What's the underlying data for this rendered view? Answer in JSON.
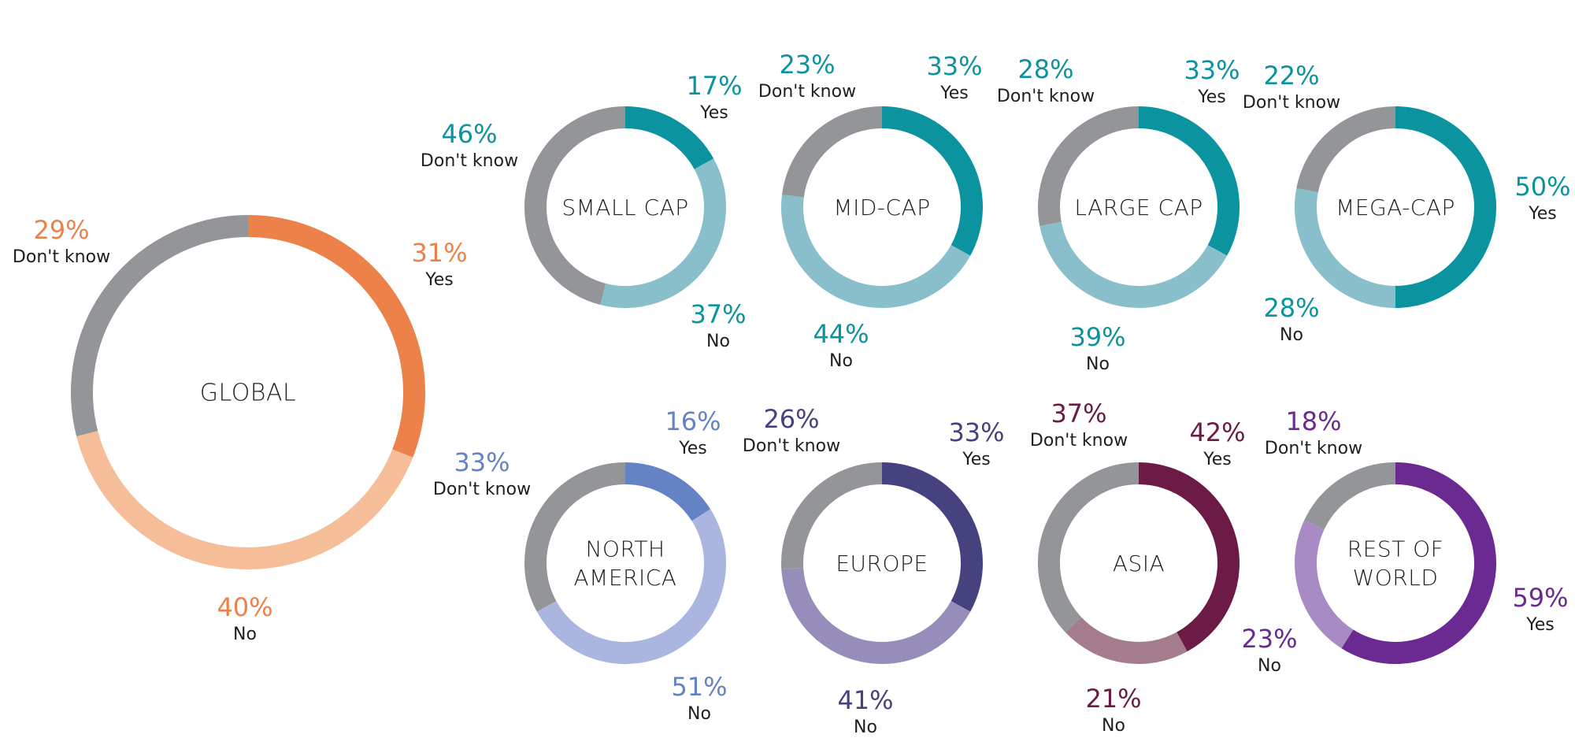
{
  "chart_data": [
    {
      "type": "pie",
      "title": "GLOBAL",
      "categories": [
        "Yes",
        "No",
        "Don't know"
      ],
      "values": [
        31,
        40,
        29
      ],
      "value_labels": [
        "31%",
        "40%",
        "29%"
      ],
      "colors": [
        "#ED814A",
        "#F6BD99",
        "#939598"
      ],
      "label_color": "#ED814A"
    },
    {
      "type": "pie",
      "title": "SMALL CAP",
      "categories": [
        "Yes",
        "No",
        "Don't know"
      ],
      "values": [
        17,
        37,
        46
      ],
      "value_labels": [
        "17%",
        "37%",
        "46%"
      ],
      "colors": [
        "#0B93A0",
        "#89BFCB",
        "#939598"
      ],
      "label_color": "#0B93A0"
    },
    {
      "type": "pie",
      "title": "MID-CAP",
      "categories": [
        "Yes",
        "No",
        "Don't know"
      ],
      "values": [
        33,
        44,
        23
      ],
      "value_labels": [
        "33%",
        "44%",
        "23%"
      ],
      "colors": [
        "#0B93A0",
        "#89BFCB",
        "#939598"
      ],
      "label_color": "#0B93A0"
    },
    {
      "type": "pie",
      "title": "LARGE CAP",
      "categories": [
        "Yes",
        "No",
        "Don't know"
      ],
      "values": [
        33,
        39,
        28
      ],
      "value_labels": [
        "33%",
        "39%",
        "28%"
      ],
      "colors": [
        "#0B93A0",
        "#89BFCB",
        "#939598"
      ],
      "label_color": "#0B93A0"
    },
    {
      "type": "pie",
      "title": "MEGA-CAP",
      "categories": [
        "Yes",
        "No",
        "Don't know"
      ],
      "values": [
        50,
        28,
        22
      ],
      "value_labels": [
        "50%",
        "28%",
        "22%"
      ],
      "colors": [
        "#0B93A0",
        "#89BFCB",
        "#939598"
      ],
      "label_color": "#0B93A0"
    },
    {
      "type": "pie",
      "title": "NORTH AMERICA",
      "title_lines": [
        "NORTH",
        "AMERICA"
      ],
      "categories": [
        "Yes",
        "No",
        "Don't know"
      ],
      "values": [
        16,
        51,
        33
      ],
      "value_labels": [
        "16%",
        "51%",
        "33%"
      ],
      "colors": [
        "#6383C4",
        "#AAB6E0",
        "#939598"
      ],
      "label_color": "#6383C4"
    },
    {
      "type": "pie",
      "title": "EUROPE",
      "categories": [
        "Yes",
        "No",
        "Don't know"
      ],
      "values": [
        33,
        41,
        26
      ],
      "value_labels": [
        "33%",
        "41%",
        "26%"
      ],
      "colors": [
        "#46427F",
        "#978DBB",
        "#939598"
      ],
      "label_color": "#46427F"
    },
    {
      "type": "pie",
      "title": "ASIA",
      "categories": [
        "Yes",
        "No",
        "Don't know"
      ],
      "values": [
        42,
        21,
        37
      ],
      "value_labels": [
        "42%",
        "21%",
        "37%"
      ],
      "colors": [
        "#6B1B45",
        "#A57C8D",
        "#939598"
      ],
      "label_color": "#6B1B45"
    },
    {
      "type": "pie",
      "title": "REST OF WORLD",
      "title_lines": [
        "REST OF",
        "WORLD"
      ],
      "categories": [
        "Yes",
        "No",
        "Don't know"
      ],
      "values": [
        59,
        23,
        18
      ],
      "value_labels": [
        "59%",
        "23%",
        "18%"
      ],
      "colors": [
        "#6A2A91",
        "#A88BC4",
        "#939598"
      ],
      "label_color": "#6A2A91"
    }
  ]
}
